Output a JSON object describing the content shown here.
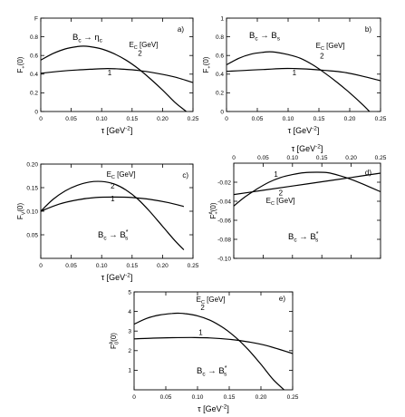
{
  "chart_data": [
    {
      "type": "line",
      "panel": "a)",
      "process": {
        "b": "B",
        "bsub": "c",
        "arrow": "→",
        "f": "η",
        "fsub": "c"
      },
      "ylabel": {
        "main": "F",
        "sub": "+",
        "paren": "(0)"
      },
      "xlabel": {
        "main": "τ [GeV",
        "sup": "-2",
        "end": "]"
      },
      "xlim": [
        0,
        0.25
      ],
      "ylim": [
        0,
        1
      ],
      "xticks": [
        0,
        0.05,
        0.1,
        0.15,
        0.2,
        0.25
      ],
      "xtick_labels": [
        "0",
        "0.05",
        "0.10",
        "0.15",
        "0.20",
        "0.25"
      ],
      "yticks": [
        0,
        0.2,
        0.4,
        0.6,
        0.8,
        1.0
      ],
      "ytick_labels": [
        "0",
        "0.2",
        "0.4",
        "0.6",
        "0.8",
        "F"
      ],
      "legend_title": "E_C [GeV]",
      "series": [
        {
          "name": "2",
          "x": [
            0,
            0.02,
            0.04,
            0.06,
            0.07,
            0.08,
            0.1,
            0.12,
            0.14,
            0.16,
            0.18,
            0.2,
            0.22,
            0.235,
            0.245
          ],
          "y": [
            0.55,
            0.62,
            0.67,
            0.695,
            0.7,
            0.695,
            0.67,
            0.62,
            0.55,
            0.46,
            0.35,
            0.23,
            0.1,
            0.02,
            -0.03
          ]
        },
        {
          "name": "1",
          "x": [
            0,
            0.03,
            0.06,
            0.09,
            0.11,
            0.13,
            0.16,
            0.19,
            0.22,
            0.25
          ],
          "y": [
            0.41,
            0.43,
            0.445,
            0.455,
            0.46,
            0.455,
            0.44,
            0.41,
            0.37,
            0.31
          ]
        }
      ],
      "curve_labels": [
        {
          "text": "2",
          "x": 0.163,
          "y": 0.595
        },
        {
          "text": "1",
          "x": 0.113,
          "y": 0.39
        }
      ],
      "legend_pos": {
        "x": 0.145,
        "y": 0.69
      }
    },
    {
      "type": "line",
      "panel": "b)",
      "process": {
        "b": "B",
        "bsub": "c",
        "arrow": "→",
        "f": "B",
        "fsub": "s"
      },
      "ylabel": {
        "main": "F",
        "sub": "+",
        "paren": "(0)"
      },
      "xlabel": {
        "main": "τ [GeV",
        "sup": "-2",
        "end": "]"
      },
      "xlim": [
        0,
        0.25
      ],
      "ylim": [
        0,
        1
      ],
      "xticks": [
        0,
        0.05,
        0.1,
        0.15,
        0.2,
        0.25
      ],
      "xtick_labels": [
        "0",
        "0.05",
        "0.10",
        "0.15",
        "0.20",
        "0.25"
      ],
      "yticks": [
        0,
        0.2,
        0.4,
        0.6,
        0.8,
        1.0
      ],
      "ytick_labels": [
        "0",
        "0.2",
        "0.4",
        "0.6",
        "0.8",
        "1"
      ],
      "legend_title": "E_C [GeV]",
      "series": [
        {
          "name": "2",
          "x": [
            0,
            0.02,
            0.04,
            0.06,
            0.07,
            0.08,
            0.1,
            0.12,
            0.14,
            0.16,
            0.18,
            0.2,
            0.22,
            0.235
          ],
          "y": [
            0.5,
            0.57,
            0.615,
            0.635,
            0.64,
            0.635,
            0.61,
            0.57,
            0.5,
            0.41,
            0.31,
            0.2,
            0.08,
            -0.02
          ]
        },
        {
          "name": "1",
          "x": [
            0,
            0.03,
            0.06,
            0.09,
            0.11,
            0.13,
            0.16,
            0.19,
            0.22,
            0.25
          ],
          "y": [
            0.43,
            0.44,
            0.45,
            0.46,
            0.46,
            0.455,
            0.44,
            0.42,
            0.38,
            0.33
          ]
        }
      ],
      "curve_labels": [
        {
          "text": "2",
          "x": 0.155,
          "y": 0.57
        },
        {
          "text": "1",
          "x": 0.11,
          "y": 0.39
        }
      ],
      "legend_pos": {
        "x": 0.145,
        "y": 0.68
      }
    },
    {
      "type": "line",
      "panel": "c)",
      "process": {
        "b": "B",
        "bsub": "c",
        "arrow": "→",
        "f": "B",
        "fsub": "s",
        "fsup": "*"
      },
      "ylabel": {
        "main": "F",
        "sub": "V",
        "paren": "(0)"
      },
      "xlabel": {
        "main": "τ [GeV",
        "sup": "-2",
        "end": "]"
      },
      "xlim": [
        0,
        0.25
      ],
      "ylim": [
        0,
        0.2
      ],
      "xticks": [
        0,
        0.05,
        0.1,
        0.15,
        0.2,
        0.25
      ],
      "xtick_labels": [
        "0",
        "0.05",
        "0.10",
        "0.15",
        "0.20",
        "0.25"
      ],
      "yticks": [
        0.05,
        0.1,
        0.15,
        0.2
      ],
      "ytick_labels": [
        "0.05",
        "0.10",
        "0.15",
        "0.20"
      ],
      "legend_title": "E_C [GeV]",
      "series": [
        {
          "name": "2",
          "x": [
            0,
            0.02,
            0.04,
            0.06,
            0.08,
            0.1,
            0.12,
            0.14,
            0.16,
            0.18,
            0.2,
            0.22,
            0.235
          ],
          "y": [
            0.1,
            0.125,
            0.143,
            0.155,
            0.162,
            0.163,
            0.158,
            0.145,
            0.125,
            0.098,
            0.068,
            0.038,
            0.018
          ]
        },
        {
          "name": "1",
          "x": [
            0,
            0.03,
            0.06,
            0.09,
            0.12,
            0.15,
            0.18,
            0.21,
            0.235
          ],
          "y": [
            0.1,
            0.115,
            0.124,
            0.129,
            0.13,
            0.129,
            0.125,
            0.118,
            0.11
          ]
        }
      ],
      "curve_labels": [
        {
          "text": "2",
          "x": 0.118,
          "y": 0.148
        },
        {
          "text": "1",
          "x": 0.118,
          "y": 0.121
        }
      ],
      "legend_pos": {
        "x": 0.108,
        "y": 0.173
      }
    },
    {
      "type": "line",
      "panel": "d)",
      "x_axis_top": true,
      "process": {
        "b": "B",
        "bsub": "c",
        "arrow": "→",
        "f": "B",
        "fsub": "s",
        "fsup": "*"
      },
      "ylabel": {
        "main": "F",
        "sub": "+",
        "sup": "A",
        "paren": "(0)"
      },
      "xlabel": {
        "main": "τ [GeV",
        "sup": "-2",
        "end": "]"
      },
      "xlim": [
        0,
        0.25
      ],
      "ylim": [
        -0.1,
        0
      ],
      "xticks": [
        0,
        0.05,
        0.1,
        0.15,
        0.2,
        0.25
      ],
      "xtick_labels": [
        "0",
        "0.05",
        "0.10",
        "0.15",
        "0.20",
        "0.25"
      ],
      "yticks": [
        -0.02,
        -0.04,
        -0.06,
        -0.08,
        -0.1
      ],
      "ytick_labels": [
        "-0.02",
        "-0.04",
        "-0.06",
        "-0.08",
        "-0.10"
      ],
      "legend_title": "E_C [GeV]",
      "series": [
        {
          "name": "1",
          "x": [
            0,
            0.05,
            0.1,
            0.15,
            0.2,
            0.25
          ],
          "y": [
            -0.033,
            -0.0285,
            -0.024,
            -0.0195,
            -0.015,
            -0.0105
          ]
        },
        {
          "name": "2",
          "x": [
            0,
            0.02,
            0.04,
            0.06,
            0.08,
            0.1,
            0.12,
            0.14,
            0.16,
            0.18,
            0.2,
            0.22,
            0.25
          ],
          "y": [
            -0.045,
            -0.035,
            -0.027,
            -0.02,
            -0.015,
            -0.012,
            -0.01,
            -0.0095,
            -0.01,
            -0.013,
            -0.017,
            -0.022,
            -0.03
          ]
        }
      ],
      "curve_labels": [
        {
          "text": "1",
          "x": 0.072,
          "y": -0.0145
        },
        {
          "text": "2",
          "x": 0.08,
          "y": -0.034
        }
      ],
      "legend_pos": {
        "x": 0.055,
        "y": -0.042
      }
    },
    {
      "type": "line",
      "panel": "e)",
      "process": {
        "b": "B",
        "bsub": "c",
        "arrow": "→",
        "f": "B",
        "fsub": "s",
        "fsup": "*"
      },
      "ylabel": {
        "main": "F",
        "sub": "0",
        "sup": "A",
        "paren": "(0)"
      },
      "xlabel": {
        "main": "τ [GeV",
        "sup": "-2",
        "end": "]"
      },
      "xlim": [
        0,
        0.25
      ],
      "ylim": [
        0,
        5
      ],
      "xticks": [
        0,
        0.05,
        0.1,
        0.15,
        0.2,
        0.25
      ],
      "xtick_labels": [
        "0",
        "0.05",
        "0.10",
        "0.15",
        "0.20",
        "0.25"
      ],
      "yticks": [
        1,
        2,
        3,
        4,
        5
      ],
      "ytick_labels": [
        "1",
        "2",
        "3",
        "4",
        "5"
      ],
      "legend_title": "E_C [GeV]",
      "series": [
        {
          "name": "2",
          "x": [
            0,
            0.02,
            0.04,
            0.06,
            0.07,
            0.08,
            0.1,
            0.12,
            0.14,
            0.16,
            0.18,
            0.2,
            0.22,
            0.24
          ],
          "y": [
            3.35,
            3.65,
            3.82,
            3.9,
            3.91,
            3.89,
            3.78,
            3.55,
            3.18,
            2.68,
            2.05,
            1.3,
            0.5,
            -0.1
          ]
        },
        {
          "name": "1",
          "x": [
            0,
            0.03,
            0.06,
            0.09,
            0.12,
            0.15,
            0.18,
            0.21,
            0.25
          ],
          "y": [
            2.6,
            2.64,
            2.66,
            2.67,
            2.65,
            2.58,
            2.45,
            2.25,
            1.85
          ]
        }
      ],
      "curve_labels": [
        {
          "text": "2",
          "x": 0.108,
          "y": 4.08
        },
        {
          "text": "1",
          "x": 0.105,
          "y": 2.8
        }
      ],
      "legend_pos": {
        "x": 0.098,
        "y": 4.48
      }
    }
  ]
}
